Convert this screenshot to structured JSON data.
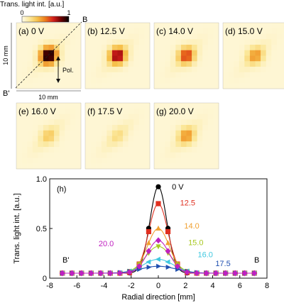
{
  "colorbar": {
    "title": "Trans. light int. [a.u.]",
    "min_label": "0",
    "max_label": "1",
    "colors": [
      "#fffbe6",
      "#fbe79a",
      "#f6c04a",
      "#ec7a1c",
      "#d4201c",
      "#6b0000",
      "#000000"
    ]
  },
  "panels": [
    {
      "label": "(a) 0 V",
      "peak": 1.0
    },
    {
      "label": "(b) 12.5 V",
      "peak": 0.75
    },
    {
      "label": "(c) 14.0 V",
      "peak": 0.55
    },
    {
      "label": "(d) 15.0 V",
      "peak": 0.35
    },
    {
      "label": "(e) 16.0 V",
      "peak": 0.18
    },
    {
      "label": "(f) 17.5 V",
      "peak": 0.1
    },
    {
      "label": "(g) 20.0 V",
      "peak": 0.35
    }
  ],
  "panel_annotations": {
    "corner_b": "B",
    "corner_b_prime": "B'",
    "size_x": "10 mm",
    "size_y": "10 mm",
    "pol": "Pol."
  },
  "chart_data": {
    "type": "scatter",
    "panel_label": "(h)",
    "xlabel": "Radial direction [mm]",
    "ylabel": "Trans. light int. [a.u.]",
    "xlim": [
      -8,
      8
    ],
    "ylim": [
      0,
      1.0
    ],
    "xticks": [
      -8,
      -6,
      -4,
      -2,
      0,
      2,
      4,
      6,
      8
    ],
    "yticks": [
      0,
      0.5,
      1.0
    ],
    "ytick_labels": [
      "0",
      "0.5",
      "1.0"
    ],
    "end_labels": {
      "left": "B'",
      "right": "B"
    },
    "x": [
      -7.07,
      -6.36,
      -5.66,
      -4.95,
      -4.24,
      -3.54,
      -2.83,
      -2.12,
      -1.41,
      -0.71,
      0,
      0.71,
      1.41,
      2.12,
      2.83,
      3.54,
      4.24,
      4.95,
      5.66,
      6.36,
      7.07
    ],
    "series": [
      {
        "name": "0 V",
        "color": "#000000",
        "marker": "circle",
        "peak": 0.92,
        "width": 0.62,
        "label_at": [
          1.0,
          0.92
        ]
      },
      {
        "name": "12.5",
        "color": "#e03020",
        "marker": "square",
        "peak": 0.75,
        "width": 0.7,
        "label_at": [
          1.6,
          0.76
        ]
      },
      {
        "name": "14.0",
        "color": "#f0a030",
        "marker": "triangle-up",
        "peak": 0.5,
        "width": 0.8,
        "label_at": [
          1.9,
          0.53
        ]
      },
      {
        "name": "15.0",
        "color": "#a8c820",
        "marker": "triangle-down",
        "peak": 0.32,
        "width": 0.95,
        "label_at": [
          2.2,
          0.36
        ]
      },
      {
        "name": "16.0",
        "color": "#40c8e0",
        "marker": "triangle-left",
        "peak": 0.19,
        "width": 1.1,
        "label_at": [
          2.9,
          0.24
        ]
      },
      {
        "name": "17.5",
        "color": "#2050b0",
        "marker": "triangle-right",
        "peak": 0.12,
        "width": 1.3,
        "label_at": [
          4.2,
          0.15
        ]
      },
      {
        "name": "20.0",
        "color": "#c020c0",
        "marker": "diamond",
        "peak": 0.38,
        "width": 0.8,
        "label_at": [
          -4.4,
          0.35
        ]
      }
    ],
    "baseline": 0.05
  }
}
